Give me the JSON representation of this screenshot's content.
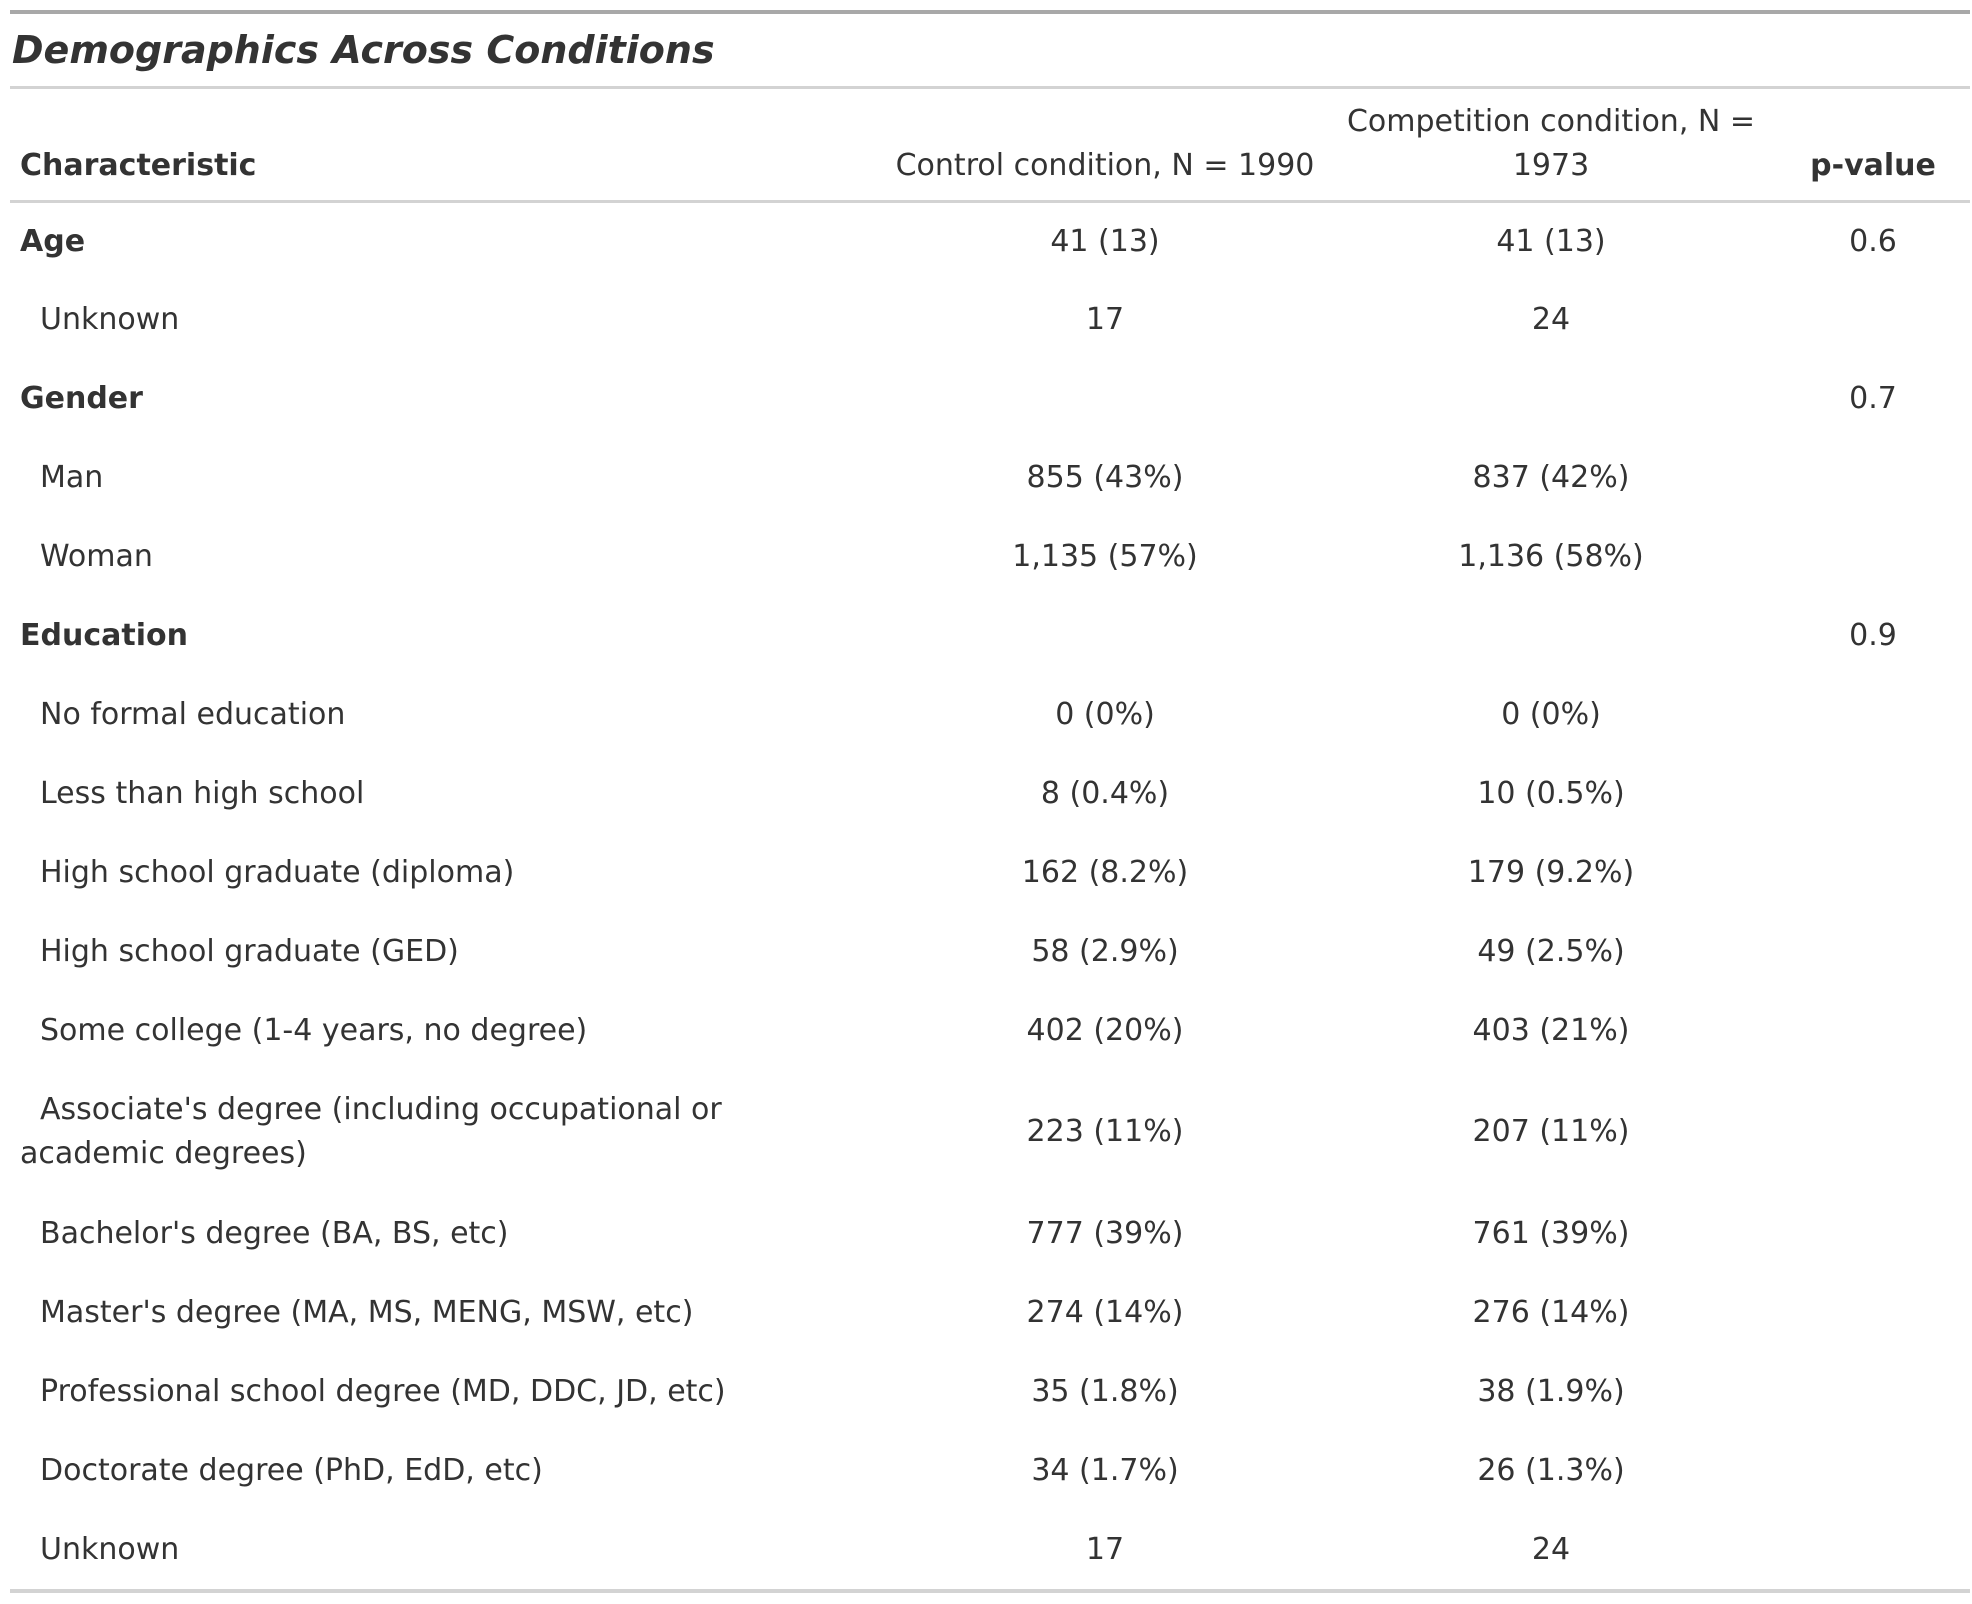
{
  "table": {
    "title": "Demographics Across Conditions",
    "headers": {
      "characteristic": "Characteristic",
      "control": "Control condition, N = 1990",
      "competition": "Competition condition, N = 1973",
      "pvalue": "p-value"
    },
    "rows": [
      {
        "label": "Age",
        "control": "41 (13)",
        "competition": "41 (13)",
        "pvalue": "0.6"
      },
      {
        "label": "Unknown",
        "control": "17",
        "competition": "24",
        "pvalue": ""
      },
      {
        "label": "Gender",
        "control": "",
        "competition": "",
        "pvalue": "0.7"
      },
      {
        "label": "Man",
        "control": "855 (43%)",
        "competition": "837 (42%)",
        "pvalue": ""
      },
      {
        "label": "Woman",
        "control": "1,135 (57%)",
        "competition": "1,136 (58%)",
        "pvalue": ""
      },
      {
        "label": "Education",
        "control": "",
        "competition": "",
        "pvalue": "0.9"
      },
      {
        "label": "No formal education",
        "control": "0 (0%)",
        "competition": "0 (0%)",
        "pvalue": ""
      },
      {
        "label": "Less than high school",
        "control": "8 (0.4%)",
        "competition": "10 (0.5%)",
        "pvalue": ""
      },
      {
        "label": "High school graduate (diploma)",
        "control": "162 (8.2%)",
        "competition": "179 (9.2%)",
        "pvalue": ""
      },
      {
        "label": "High school graduate (GED)",
        "control": "58 (2.9%)",
        "competition": "49 (2.5%)",
        "pvalue": ""
      },
      {
        "label": "Some college (1-4 years, no degree)",
        "control": "402 (20%)",
        "competition": "403 (21%)",
        "pvalue": ""
      },
      {
        "label": "Associate's degree (including occupational or academic degrees)",
        "control": "223 (11%)",
        "competition": "207 (11%)",
        "pvalue": ""
      },
      {
        "label": "Bachelor's degree (BA, BS, etc)",
        "control": "777 (39%)",
        "competition": "761 (39%)",
        "pvalue": ""
      },
      {
        "label": "Master's degree (MA, MS, MENG, MSW, etc)",
        "control": "274 (14%)",
        "competition": "276 (14%)",
        "pvalue": ""
      },
      {
        "label": "Professional school degree (MD, DDC, JD, etc)",
        "control": "35 (1.8%)",
        "competition": "38 (1.9%)",
        "pvalue": ""
      },
      {
        "label": "Doctorate degree (PhD, EdD, etc)",
        "control": "34 (1.7%)",
        "competition": "26 (1.3%)",
        "pvalue": ""
      },
      {
        "label": "Unknown",
        "control": "17",
        "competition": "24",
        "pvalue": ""
      }
    ]
  }
}
